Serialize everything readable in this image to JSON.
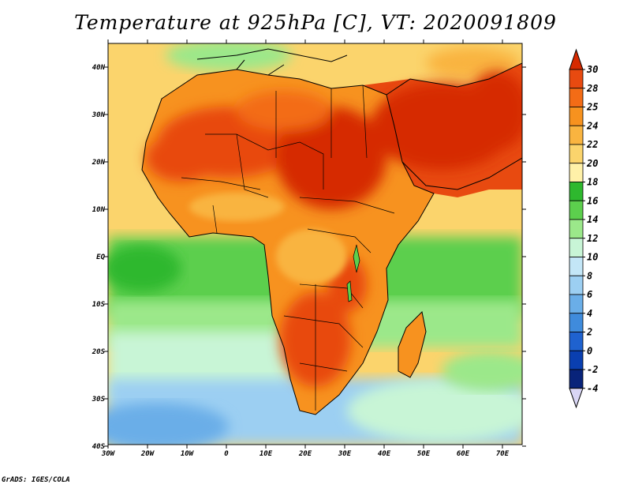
{
  "title": "Temperature at 925hPa [C], VT: 2020091809",
  "footer": "GrADS: IGES/COLA",
  "axes": {
    "lon_labels": [
      "30W",
      "20W",
      "10W",
      "0",
      "10E",
      "20E",
      "30E",
      "40E",
      "50E",
      "60E",
      "70E"
    ],
    "lat_labels": [
      "40N",
      "30N",
      "20N",
      "10N",
      "EQ",
      "10S",
      "20S",
      "30S",
      "40S"
    ]
  },
  "colorbar": {
    "labels": [
      "30",
      "28",
      "25",
      "24",
      "22",
      "20",
      "18",
      "16",
      "14",
      "12",
      "10",
      "8",
      "6",
      "4",
      "2",
      "0",
      "-2",
      "-4"
    ],
    "colors": [
      "#d62a00",
      "#e84a10",
      "#f36c16",
      "#f7921f",
      "#f9b440",
      "#fbd46c",
      "#fff1a8",
      "#2eb82e",
      "#5ccf4d",
      "#9be88a",
      "#c8f5d6",
      "#c3e6f7",
      "#9ccff2",
      "#6aaee8",
      "#3f8bdc",
      "#1f62cf",
      "#0a3fb0",
      "#08237a",
      "#d9d6f5"
    ]
  },
  "map": {
    "ocean_color": "#5ccf4d",
    "land_hot_color": "#d62a00"
  }
}
